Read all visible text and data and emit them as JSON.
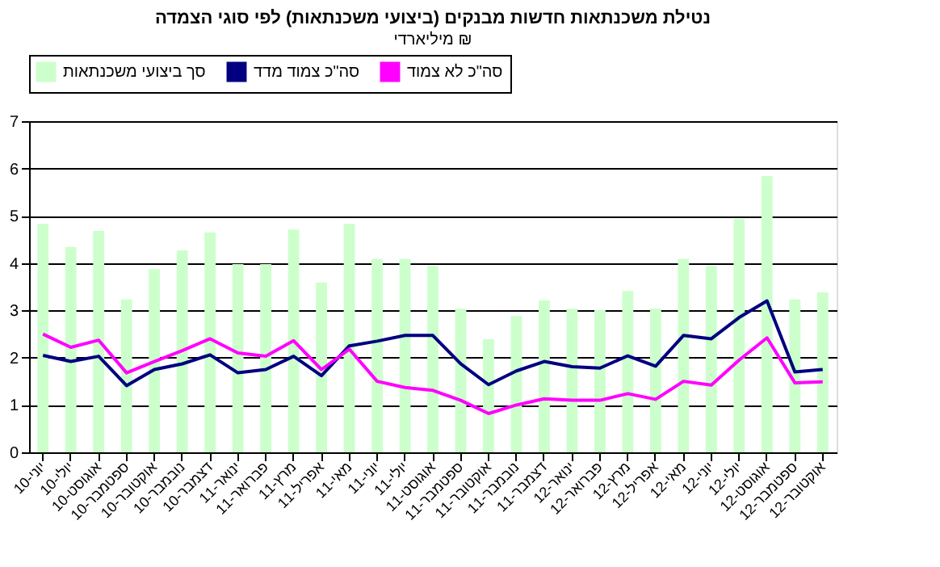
{
  "chart_data": {
    "type": "bar",
    "title": "נטילת משכנתאות חדשות מבנקים (ביצועי משכנתאות) לפי סוגי הצמדה",
    "subtitle": "מיליארדי ₪",
    "categories": [
      "יוני-10",
      "יולי-10",
      "אוגוסט-10",
      "ספטמבר-10",
      "אוקטובר-10",
      "נובמבר-10",
      "דצמבר-10",
      "ינואר-11",
      "פברואר-11",
      "מרץ-11",
      "אפריל-11",
      "מאי-11",
      "יוני-11",
      "יולי-11",
      "אוגוסט-11",
      "ספטמבר-11",
      "אוקטובר-11",
      "נובמבר-11",
      "דצמבר-11",
      "ינואר-12",
      "פברואר-12",
      "מרץ-12",
      "אפריל-12",
      "מאי-12",
      "יוני-12",
      "יולי-12",
      "אוגוסט-12",
      "ספטמבר-12",
      "אוקטובר-12"
    ],
    "series": [
      {
        "name": "סך ביצועי משכנתאות",
        "color": "#ccffcc",
        "values": [
          4.83,
          4.34,
          4.68,
          3.23,
          3.87,
          4.27,
          4.65,
          3.98,
          3.98,
          4.71,
          3.59,
          4.83,
          4.09,
          4.09,
          3.94,
          3.04,
          2.39,
          2.88,
          3.21,
          3.04,
          3.01,
          3.41,
          3.04,
          4.09,
          3.94,
          4.93,
          5.84,
          3.23,
          3.38
        ]
      },
      {
        "name": "סה\"כ צמוד מדד",
        "type": "line",
        "color": "#000080",
        "values": [
          2.05,
          1.92,
          2.03,
          1.41,
          1.75,
          1.87,
          2.06,
          1.68,
          1.75,
          2.03,
          1.62,
          2.25,
          2.35,
          2.47,
          2.47,
          1.87,
          1.43,
          1.72,
          1.92,
          1.81,
          1.78,
          2.04,
          1.82,
          2.47,
          2.4,
          2.85,
          3.2,
          1.7,
          1.75
        ]
      },
      {
        "name": "סה\"כ לא צמוד",
        "type": "line",
        "color": "#ff00ff",
        "values": [
          2.5,
          2.22,
          2.37,
          1.68,
          1.92,
          2.15,
          2.4,
          2.1,
          2.03,
          2.36,
          1.75,
          2.18,
          1.5,
          1.37,
          1.31,
          1.1,
          0.82,
          1.0,
          1.13,
          1.1,
          1.1,
          1.24,
          1.12,
          1.5,
          1.42,
          1.95,
          2.42,
          1.47,
          1.49
        ]
      }
    ],
    "ylim": [
      0,
      7
    ],
    "yticks": [
      0,
      1,
      2,
      3,
      4,
      5,
      6,
      7
    ],
    "grid": "y",
    "legend": "top",
    "line_style": "solid",
    "marker": "none"
  }
}
